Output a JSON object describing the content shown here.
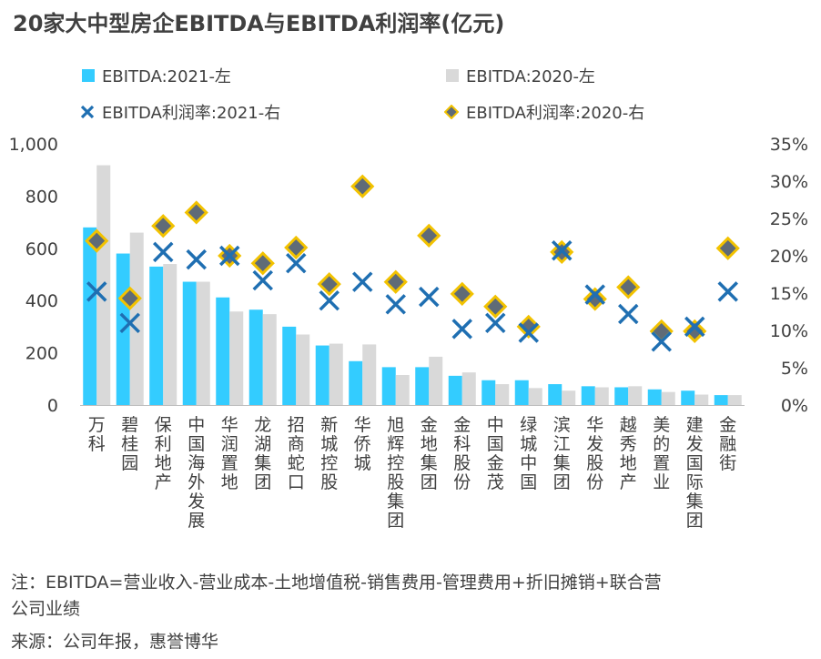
{
  "title": "20家大中型房企EBITDA与EBITDA利润率(亿元)",
  "notes": {
    "line1": "注：EBITDA=营业收入-营业成本-土地增值税-销售费用-管理费用+折旧摊销+联合营",
    "line2": "公司业绩",
    "source": "来源：公司年报，惠誉博华"
  },
  "colors": {
    "bar2021": "#33CCFF",
    "bar2020": "#D9D9D9",
    "marker2021": "#1F6FB2",
    "marker2020_fill": "#5F6B77",
    "marker2020_edge": "#F2C200",
    "text": "#404040"
  },
  "chart_data": {
    "type": "bar",
    "categories": [
      "万科",
      "碧桂园",
      "保利地产",
      "中国海外发展",
      "华润置地",
      "龙湖集团",
      "招商蛇口",
      "新城控股",
      "华侨城",
      "旭辉控股集团",
      "金地集团",
      "金科股份",
      "中国金茂",
      "绿城中国",
      "滨江集团",
      "华发股份",
      "越秀地产",
      "美的置业",
      "建发国际集团",
      "金融街"
    ],
    "series": [
      {
        "name": "EBITDA:2021-左",
        "axis": "left",
        "kind": "bar",
        "values": [
          680,
          580,
          530,
          472,
          412,
          365,
          300,
          228,
          168,
          145,
          145,
          112,
          95,
          95,
          80,
          72,
          68,
          60,
          55,
          38
        ]
      },
      {
        "name": "EBITDA:2020-左",
        "axis": "left",
        "kind": "bar",
        "values": [
          918,
          660,
          540,
          472,
          358,
          348,
          270,
          235,
          232,
          115,
          185,
          125,
          80,
          65,
          55,
          68,
          72,
          50,
          40,
          38
        ]
      },
      {
        "name": "EBITDA利润率:2021-右",
        "axis": "right",
        "kind": "marker-x",
        "values": [
          15.2,
          11.0,
          20.5,
          19.5,
          20.0,
          16.7,
          19.0,
          14.0,
          16.5,
          13.5,
          14.5,
          10.2,
          11.0,
          9.7,
          20.7,
          14.8,
          12.2,
          8.5,
          10.5,
          15.2
        ]
      },
      {
        "name": "EBITDA利润率:2020-右",
        "axis": "right",
        "kind": "marker-diamond",
        "values": [
          22.0,
          14.3,
          24.0,
          25.8,
          20.0,
          19.0,
          21.1,
          16.2,
          29.3,
          16.5,
          22.7,
          14.9,
          13.2,
          10.5,
          20.5,
          14.2,
          15.8,
          9.9,
          9.9,
          21.0
        ]
      }
    ],
    "yLeft": {
      "min": 0,
      "max": 1000,
      "ticks": [
        0,
        200,
        400,
        600,
        800,
        1000
      ],
      "tickLabels": [
        "0",
        "200",
        "400",
        "600",
        "800",
        "1,000"
      ]
    },
    "yRight": {
      "min": 0,
      "max": 35,
      "ticks": [
        0,
        5,
        10,
        15,
        20,
        25,
        30,
        35
      ],
      "tickLabels": [
        "0%",
        "5%",
        "10%",
        "15%",
        "20%",
        "25%",
        "30%",
        "35%"
      ]
    },
    "grid": false,
    "legend_position": "top"
  }
}
